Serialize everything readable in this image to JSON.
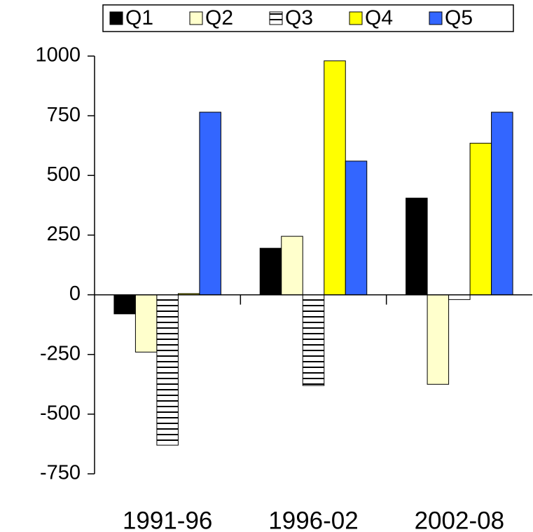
{
  "chart_data": {
    "type": "bar",
    "categories": [
      "1991-96",
      "1996-02",
      "2002-08"
    ],
    "series": [
      {
        "name": "Q1",
        "color": "#000000",
        "values": [
          -80,
          195,
          405
        ]
      },
      {
        "name": "Q2",
        "color": "#ffffcc",
        "values": [
          -240,
          245,
          -375
        ]
      },
      {
        "name": "Q3",
        "color": "#ffffff",
        "hatch": "horizontal",
        "values": [
          -630,
          -380,
          -20
        ]
      },
      {
        "name": "Q4",
        "color": "#ffff00",
        "values": [
          5,
          980,
          635
        ]
      },
      {
        "name": "Q5",
        "color": "#3366ff",
        "values": [
          765,
          560,
          765
        ]
      }
    ],
    "ylim": [
      -750,
      1000
    ],
    "yticks": [
      -750,
      -500,
      -250,
      0,
      250,
      500,
      750,
      1000
    ],
    "legend": "top"
  }
}
